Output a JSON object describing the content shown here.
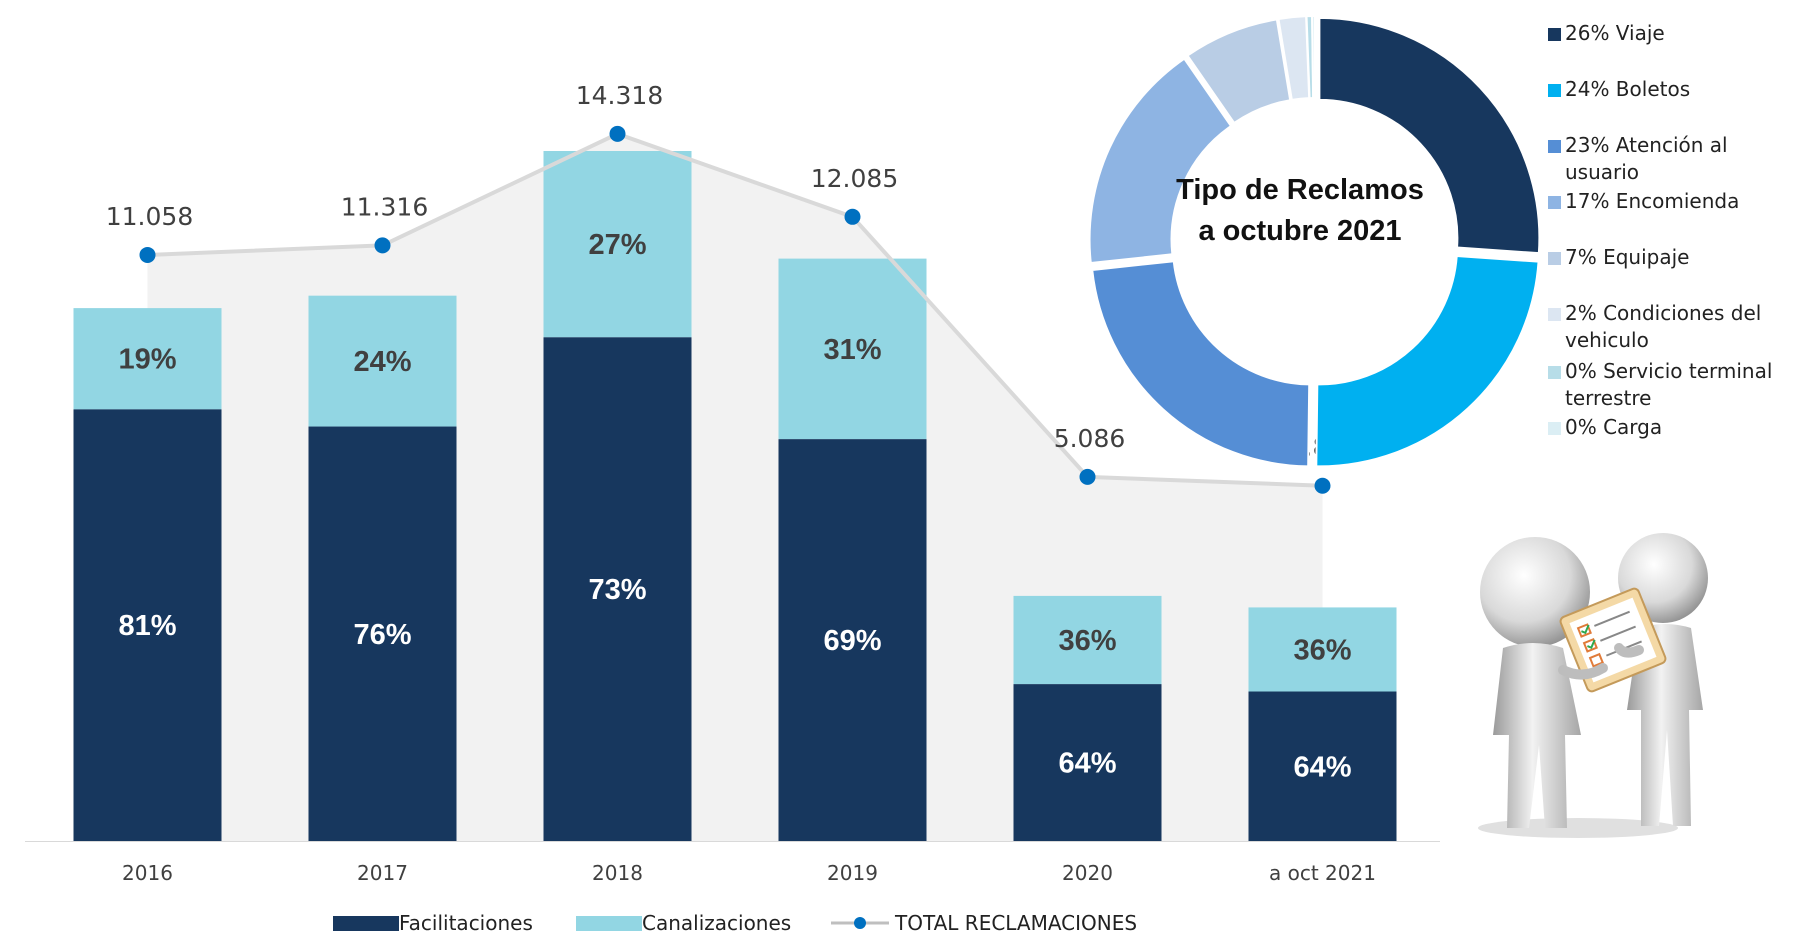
{
  "chart_data": [
    {
      "type": "bar",
      "stacked": true,
      "categories": [
        "2016",
        "2017",
        "2018",
        "2019",
        "2020",
        "a oct 2021"
      ],
      "series": [
        {
          "name": "Facilitaciones",
          "values": [
            81,
            76,
            73,
            69,
            64,
            64
          ],
          "labels": [
            "81%",
            "76%",
            "73%",
            "69%",
            "64%",
            "64%"
          ],
          "color": "#17375e"
        },
        {
          "name": "Canalizaciones",
          "values": [
            19,
            24,
            27,
            31,
            36,
            36
          ],
          "labels": [
            "19%",
            "24%",
            "27%",
            "31%",
            "36%",
            "36%"
          ],
          "color": "#92d6e3"
        }
      ],
      "line_series": {
        "name": "TOTAL RECLAMACIONES",
        "values": [
          11058,
          11316,
          14318,
          12085,
          5086,
          4847
        ],
        "labels": [
          "11.058",
          "11.316",
          "14.318",
          "12.085",
          "5.086",
          "4.847"
        ],
        "color": "#0070c0",
        "line_color": "#d9d9d9"
      },
      "legend_position": "bottom",
      "grid": false
    },
    {
      "type": "pie",
      "donut": true,
      "title": "Tipo de Reclamos a octubre 2021",
      "legend_position": "right",
      "slices": [
        {
          "label": "26% Viaje",
          "value": 26,
          "color": "#17375e"
        },
        {
          "label": "24% Boletos",
          "value": 24,
          "color": "#00b0f0"
        },
        {
          "label": "23% Atención al usuario",
          "value": 23,
          "color": "#558ed5"
        },
        {
          "label": "17% Encomienda",
          "value": 17,
          "color": "#8eb4e3"
        },
        {
          "label": "7% Equipaje",
          "value": 7,
          "color": "#b9cde5"
        },
        {
          "label": "2% Condiciones del vehiculo",
          "value": 2,
          "color": "#dce6f2"
        },
        {
          "label": "0% Servicio terminal terrestre",
          "value": 0.4,
          "color": "#b7dde8"
        },
        {
          "label": "0% Carga",
          "value": 0.2,
          "color": "#dbeef4"
        }
      ]
    }
  ]
}
